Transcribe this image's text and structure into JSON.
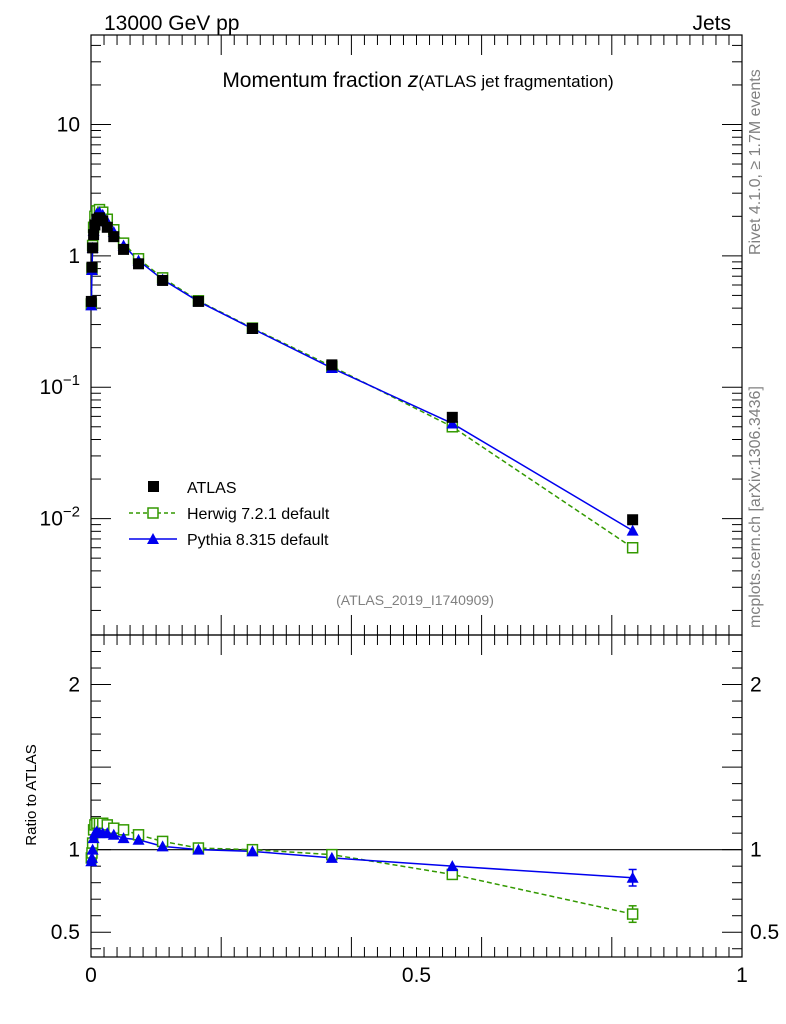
{
  "header": {
    "energy": "13000 GeV pp",
    "category": "Jets"
  },
  "side_labels": {
    "rivet": "Rivet 4.1.0, ≥ 1.7M events",
    "source": "mcplots.cern.ch [arXiv:1306.3436]"
  },
  "analysis_id": "(ATLAS_2019_I1740909)",
  "colors": {
    "data": "#000000",
    "herwig": "#339900",
    "pythia": "#0000ee",
    "reference_line": "#000000"
  },
  "chart_data": [
    {
      "type": "scatter",
      "title_main": "Momentum fraction ",
      "title_symbol": "z",
      "title_sub": "(ATLAS jet fragmentation)",
      "xlabel": "",
      "ylabel": "",
      "yscale": "log",
      "xlim": [
        0,
        1
      ],
      "ylim": [
        0.0013,
        48
      ],
      "y_ticks": [
        {
          "value": 0.01,
          "base": "10",
          "exp": "−2"
        },
        {
          "value": 0.1,
          "base": "10",
          "exp": "−1"
        },
        {
          "value": 1,
          "base": "1",
          "exp": ""
        },
        {
          "value": 10,
          "base": "10",
          "exp": ""
        }
      ],
      "legend_position": "lower-left",
      "x": [
        0.0005,
        0.0015,
        0.0025,
        0.004,
        0.006,
        0.009,
        0.013,
        0.018,
        0.025,
        0.035,
        0.05,
        0.073,
        0.11,
        0.165,
        0.248,
        0.37,
        0.555,
        0.832
      ],
      "series": [
        {
          "name": "ATLAS",
          "style": "data",
          "values": [
            0.45,
            0.82,
            1.15,
            1.45,
            1.72,
            1.9,
            1.95,
            1.85,
            1.65,
            1.4,
            1.12,
            0.87,
            0.65,
            0.45,
            0.28,
            0.148,
            0.059,
            0.0098
          ]
        },
        {
          "name": "Herwig 7.2.1 default",
          "style": "herwig",
          "values": [
            0.43,
            0.8,
            1.2,
            1.65,
            2.0,
            2.2,
            2.25,
            2.15,
            1.9,
            1.58,
            1.25,
            0.95,
            0.68,
            0.455,
            0.282,
            0.144,
            0.05,
            0.006
          ]
        },
        {
          "name": "Pythia 8.315 default",
          "style": "pythia",
          "values": [
            0.42,
            0.78,
            1.15,
            1.55,
            1.9,
            2.1,
            2.15,
            2.05,
            1.82,
            1.52,
            1.2,
            0.92,
            0.66,
            0.45,
            0.279,
            0.14,
            0.053,
            0.0081
          ]
        }
      ]
    },
    {
      "type": "scatter",
      "ylabel": "Ratio to ATLAS",
      "xlabel": "",
      "xlim": [
        0,
        1
      ],
      "ylim": [
        0.35,
        2.3
      ],
      "y_ticks": [
        {
          "value": 0.5,
          "label": "0.5"
        },
        {
          "value": 1,
          "label": "1"
        },
        {
          "value": 2,
          "label": "2"
        }
      ],
      "x_ticks": [
        {
          "value": 0,
          "label": "0"
        },
        {
          "value": 0.5,
          "label": "0.5"
        },
        {
          "value": 1,
          "label": "1"
        }
      ],
      "reference": 1,
      "series": [
        {
          "name": "Herwig 7.2.1 default",
          "style": "herwig",
          "values": [
            0.95,
            0.98,
            1.04,
            1.12,
            1.15,
            1.16,
            1.16,
            1.16,
            1.15,
            1.13,
            1.12,
            1.09,
            1.05,
            1.01,
            1.0,
            0.97,
            0.85,
            0.61
          ],
          "errors": [
            0.02,
            0.02,
            0.02,
            0.02,
            0.02,
            0.02,
            0.02,
            0.02,
            0.02,
            0.02,
            0.02,
            0.02,
            0.02,
            0.01,
            0.01,
            0.01,
            0.02,
            0.05
          ]
        },
        {
          "name": "Pythia 8.315 default",
          "style": "pythia",
          "values": [
            0.93,
            0.95,
            1.0,
            1.07,
            1.1,
            1.11,
            1.1,
            1.1,
            1.1,
            1.09,
            1.07,
            1.06,
            1.02,
            1.0,
            0.99,
            0.95,
            0.9,
            0.83
          ],
          "errors": [
            0.02,
            0.02,
            0.02,
            0.02,
            0.02,
            0.02,
            0.02,
            0.02,
            0.02,
            0.02,
            0.02,
            0.02,
            0.01,
            0.01,
            0.01,
            0.01,
            0.02,
            0.05
          ]
        }
      ]
    }
  ]
}
